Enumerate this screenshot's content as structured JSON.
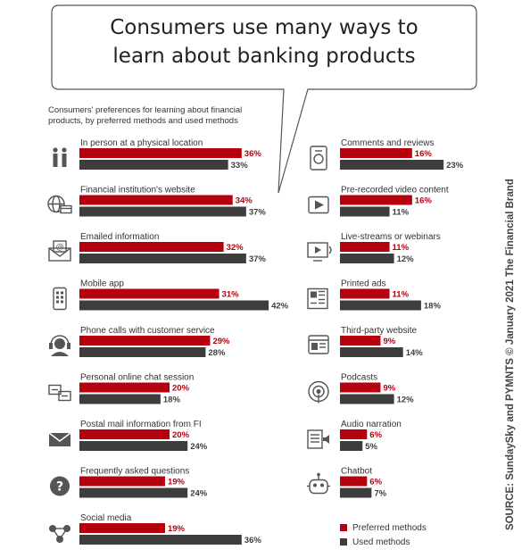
{
  "header": {
    "title_line1": "Consumers use many ways to",
    "title_line2": "learn about banking products",
    "subtitle_line1": "Consumers' preferences for learning about financial",
    "subtitle_line2": "products, by preferred methods and used methods"
  },
  "source": "SOURCE: SundaySky and PYMNTS © January 2021 The Financial Brand",
  "colors": {
    "preferred": "#b5000e",
    "used": "#3d3d3d",
    "icon": "#555555",
    "label": "#333333"
  },
  "legend": [
    {
      "label": "Preferred methods",
      "color": "#b5000e"
    },
    {
      "label": "Used methods",
      "color": "#3d3d3d"
    }
  ],
  "chart_data": {
    "type": "bar",
    "orientation": "horizontal",
    "unit": "%",
    "series": [
      {
        "name": "Preferred methods",
        "color": "#b5000e"
      },
      {
        "name": "Used methods",
        "color": "#3d3d3d"
      }
    ],
    "categories": [
      {
        "label": "In person at a physical location",
        "icon": "people-icon",
        "preferred": 36,
        "used": 33
      },
      {
        "label": "Financial institution's website",
        "icon": "globe-web-icon",
        "preferred": 34,
        "used": 37
      },
      {
        "label": "Emailed information",
        "icon": "email-icon",
        "preferred": 32,
        "used": 37
      },
      {
        "label": "Mobile app",
        "icon": "mobile-app-icon",
        "preferred": 31,
        "used": 42
      },
      {
        "label": "Phone calls with customer service",
        "icon": "headset-icon",
        "preferred": 29,
        "used": 28
      },
      {
        "label": "Personal online chat session",
        "icon": "chat-bubbles-icon",
        "preferred": 20,
        "used": 18
      },
      {
        "label": "Postal mail information from FI",
        "icon": "envelope-icon",
        "preferred": 20,
        "used": 24
      },
      {
        "label": "Frequently asked questions",
        "icon": "question-icon",
        "preferred": 19,
        "used": 24
      },
      {
        "label": "Social media",
        "icon": "social-network-icon",
        "preferred": 19,
        "used": 36
      },
      {
        "label": "Comments and reviews",
        "icon": "reviews-icon",
        "preferred": 16,
        "used": 23
      },
      {
        "label": "Pre-recorded video content",
        "icon": "video-play-icon",
        "preferred": 16,
        "used": 11
      },
      {
        "label": "Live-streams or webinars",
        "icon": "livestream-icon",
        "preferred": 11,
        "used": 12
      },
      {
        "label": "Printed ads",
        "icon": "newspaper-icon",
        "preferred": 11,
        "used": 18
      },
      {
        "label": "Third-party website",
        "icon": "browser-window-icon",
        "preferred": 9,
        "used": 14
      },
      {
        "label": "Podcasts",
        "icon": "podcast-icon",
        "preferred": 9,
        "used": 12
      },
      {
        "label": "Audio narration",
        "icon": "audio-narration-icon",
        "preferred": 6,
        "used": 5
      },
      {
        "label": "Chatbot",
        "icon": "chatbot-icon",
        "preferred": 6,
        "used": 7
      }
    ]
  }
}
